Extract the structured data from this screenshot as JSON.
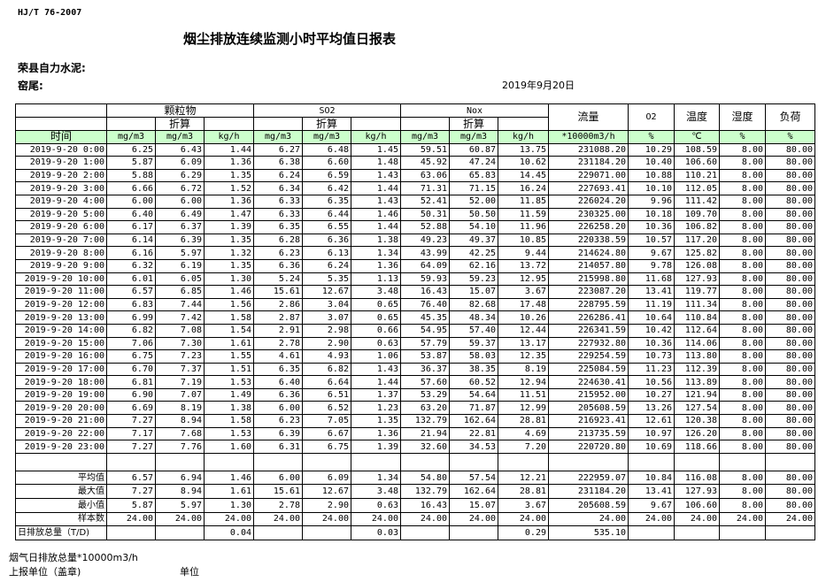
{
  "header": {
    "standard": "HJ/T  76-2007",
    "title": "烟尘排放连续监测小时平均值日报表",
    "company": "荣县自力水泥:",
    "location": "窑尾:",
    "date": "2019年9月20日"
  },
  "columns": {
    "particulate": "颗粒物",
    "so2": "SO2",
    "nox": "Nox",
    "converted": "折算",
    "flow": "流量",
    "o2": "O2",
    "temp": "温度",
    "humidity": "湿度",
    "load": "负荷",
    "time": "时间",
    "units": [
      "mg/m3",
      "mg/m3",
      "kg/h",
      "mg/m3",
      "mg/m3",
      "kg/h",
      "mg/m3",
      "mg/m3",
      "kg/h",
      "*10000m3/h",
      "%",
      "℃",
      "%",
      "%"
    ]
  },
  "rows": [
    [
      "2019-9-20 0:00",
      "6.25",
      "6.43",
      "1.44",
      "6.27",
      "6.48",
      "1.45",
      "59.51",
      "60.87",
      "13.75",
      "231088.20",
      "10.29",
      "108.59",
      "8.00",
      "80.00"
    ],
    [
      "2019-9-20 1:00",
      "5.87",
      "6.09",
      "1.36",
      "6.38",
      "6.60",
      "1.48",
      "45.92",
      "47.24",
      "10.62",
      "231184.20",
      "10.40",
      "106.60",
      "8.00",
      "80.00"
    ],
    [
      "2019-9-20 2:00",
      "5.88",
      "6.29",
      "1.35",
      "6.24",
      "6.59",
      "1.43",
      "63.06",
      "65.83",
      "14.45",
      "229071.00",
      "10.88",
      "110.21",
      "8.00",
      "80.00"
    ],
    [
      "2019-9-20 3:00",
      "6.66",
      "6.72",
      "1.52",
      "6.34",
      "6.42",
      "1.44",
      "71.31",
      "71.15",
      "16.24",
      "227693.41",
      "10.10",
      "112.05",
      "8.00",
      "80.00"
    ],
    [
      "2019-9-20 4:00",
      "6.00",
      "6.00",
      "1.36",
      "6.33",
      "6.35",
      "1.43",
      "52.41",
      "52.00",
      "11.85",
      "226024.20",
      "9.96",
      "111.42",
      "8.00",
      "80.00"
    ],
    [
      "2019-9-20 5:00",
      "6.40",
      "6.49",
      "1.47",
      "6.33",
      "6.44",
      "1.46",
      "50.31",
      "50.50",
      "11.59",
      "230325.00",
      "10.18",
      "109.70",
      "8.00",
      "80.00"
    ],
    [
      "2019-9-20 6:00",
      "6.17",
      "6.37",
      "1.39",
      "6.35",
      "6.55",
      "1.44",
      "52.88",
      "54.10",
      "11.96",
      "226258.20",
      "10.36",
      "106.82",
      "8.00",
      "80.00"
    ],
    [
      "2019-9-20 7:00",
      "6.14",
      "6.39",
      "1.35",
      "6.28",
      "6.36",
      "1.38",
      "49.23",
      "49.37",
      "10.85",
      "220338.59",
      "10.57",
      "117.20",
      "8.00",
      "80.00"
    ],
    [
      "2019-9-20 8:00",
      "6.16",
      "5.97",
      "1.32",
      "6.23",
      "6.13",
      "1.34",
      "43.99",
      "42.25",
      "9.44",
      "214624.80",
      "9.67",
      "125.82",
      "8.00",
      "80.00"
    ],
    [
      "2019-9-20 9:00",
      "6.32",
      "6.19",
      "1.35",
      "6.36",
      "6.24",
      "1.36",
      "64.09",
      "62.16",
      "13.72",
      "214057.80",
      "9.78",
      "126.08",
      "8.00",
      "80.00"
    ],
    [
      "2019-9-20 10:00",
      "6.01",
      "6.05",
      "1.30",
      "5.24",
      "5.35",
      "1.13",
      "59.93",
      "59.23",
      "12.95",
      "215998.80",
      "11.68",
      "127.93",
      "8.00",
      "80.00"
    ],
    [
      "2019-9-20 11:00",
      "6.57",
      "6.85",
      "1.46",
      "15.61",
      "12.67",
      "3.48",
      "16.43",
      "15.07",
      "3.67",
      "223087.20",
      "13.41",
      "119.77",
      "8.00",
      "80.00"
    ],
    [
      "2019-9-20 12:00",
      "6.83",
      "7.44",
      "1.56",
      "2.86",
      "3.04",
      "0.65",
      "76.40",
      "82.68",
      "17.48",
      "228795.59",
      "11.19",
      "111.34",
      "8.00",
      "80.00"
    ],
    [
      "2019-9-20 13:00",
      "6.99",
      "7.42",
      "1.58",
      "2.87",
      "3.07",
      "0.65",
      "45.35",
      "48.34",
      "10.26",
      "226286.41",
      "10.64",
      "110.84",
      "8.00",
      "80.00"
    ],
    [
      "2019-9-20 14:00",
      "6.82",
      "7.08",
      "1.54",
      "2.91",
      "2.98",
      "0.66",
      "54.95",
      "57.40",
      "12.44",
      "226341.59",
      "10.42",
      "112.64",
      "8.00",
      "80.00"
    ],
    [
      "2019-9-20 15:00",
      "7.06",
      "7.30",
      "1.61",
      "2.78",
      "2.90",
      "0.63",
      "57.79",
      "59.37",
      "13.17",
      "227932.80",
      "10.36",
      "114.06",
      "8.00",
      "80.00"
    ],
    [
      "2019-9-20 16:00",
      "6.75",
      "7.23",
      "1.55",
      "4.61",
      "4.93",
      "1.06",
      "53.87",
      "58.03",
      "12.35",
      "229254.59",
      "10.73",
      "113.80",
      "8.00",
      "80.00"
    ],
    [
      "2019-9-20 17:00",
      "6.70",
      "7.37",
      "1.51",
      "6.35",
      "6.82",
      "1.43",
      "36.37",
      "38.35",
      "8.19",
      "225084.59",
      "11.23",
      "112.39",
      "8.00",
      "80.00"
    ],
    [
      "2019-9-20 18:00",
      "6.81",
      "7.19",
      "1.53",
      "6.40",
      "6.64",
      "1.44",
      "57.60",
      "60.52",
      "12.94",
      "224630.41",
      "10.56",
      "113.89",
      "8.00",
      "80.00"
    ],
    [
      "2019-9-20 19:00",
      "6.90",
      "7.07",
      "1.49",
      "6.36",
      "6.51",
      "1.37",
      "53.29",
      "54.64",
      "11.51",
      "215952.00",
      "10.27",
      "121.94",
      "8.00",
      "80.00"
    ],
    [
      "2019-9-20 20:00",
      "6.69",
      "8.19",
      "1.38",
      "6.00",
      "6.52",
      "1.23",
      "63.20",
      "71.87",
      "12.99",
      "205608.59",
      "13.26",
      "127.54",
      "8.00",
      "80.00"
    ],
    [
      "2019-9-20 21:00",
      "7.27",
      "8.94",
      "1.58",
      "6.23",
      "7.05",
      "1.35",
      "132.79",
      "162.64",
      "28.81",
      "216923.41",
      "12.61",
      "120.38",
      "8.00",
      "80.00"
    ],
    [
      "2019-9-20 22:00",
      "7.17",
      "7.68",
      "1.53",
      "6.39",
      "6.67",
      "1.36",
      "21.94",
      "22.81",
      "4.69",
      "213735.59",
      "10.97",
      "126.20",
      "8.00",
      "80.00"
    ],
    [
      "2019-9-20 23:00",
      "7.27",
      "7.76",
      "1.60",
      "6.31",
      "6.75",
      "1.39",
      "32.60",
      "34.53",
      "7.20",
      "220720.80",
      "10.69",
      "118.66",
      "8.00",
      "80.00"
    ]
  ],
  "summary": [
    [
      "平均值",
      "6.57",
      "6.94",
      "1.46",
      "6.00",
      "6.09",
      "1.34",
      "54.80",
      "57.54",
      "12.21",
      "222959.07",
      "10.84",
      "116.08",
      "8.00",
      "80.00"
    ],
    [
      "最大值",
      "7.27",
      "8.94",
      "1.61",
      "15.61",
      "12.67",
      "3.48",
      "132.79",
      "162.64",
      "28.81",
      "231184.20",
      "13.41",
      "127.93",
      "8.00",
      "80.00"
    ],
    [
      "最小值",
      "5.87",
      "5.97",
      "1.30",
      "2.78",
      "2.90",
      "0.63",
      "16.43",
      "15.07",
      "3.67",
      "205608.59",
      "9.67",
      "106.60",
      "8.00",
      "80.00"
    ],
    [
      "样本数",
      "24.00",
      "24.00",
      "24.00",
      "24.00",
      "24.00",
      "24.00",
      "24.00",
      "24.00",
      "24.00",
      "24.00",
      "24.00",
      "24.00",
      "24.00",
      "24.00"
    ],
    [
      "日排放总量（T/D)",
      "",
      "",
      "0.04",
      "",
      "",
      "0.03",
      "",
      "",
      "0.29",
      "535.10",
      "",
      "",
      "",
      ""
    ]
  ],
  "footer": {
    "flue_total": "烟气日排放总量*10000m3/h",
    "reporting_unit": "上报单位（盖章)",
    "unit": "单位"
  },
  "colors": {
    "header_green": "#ccffcc"
  }
}
